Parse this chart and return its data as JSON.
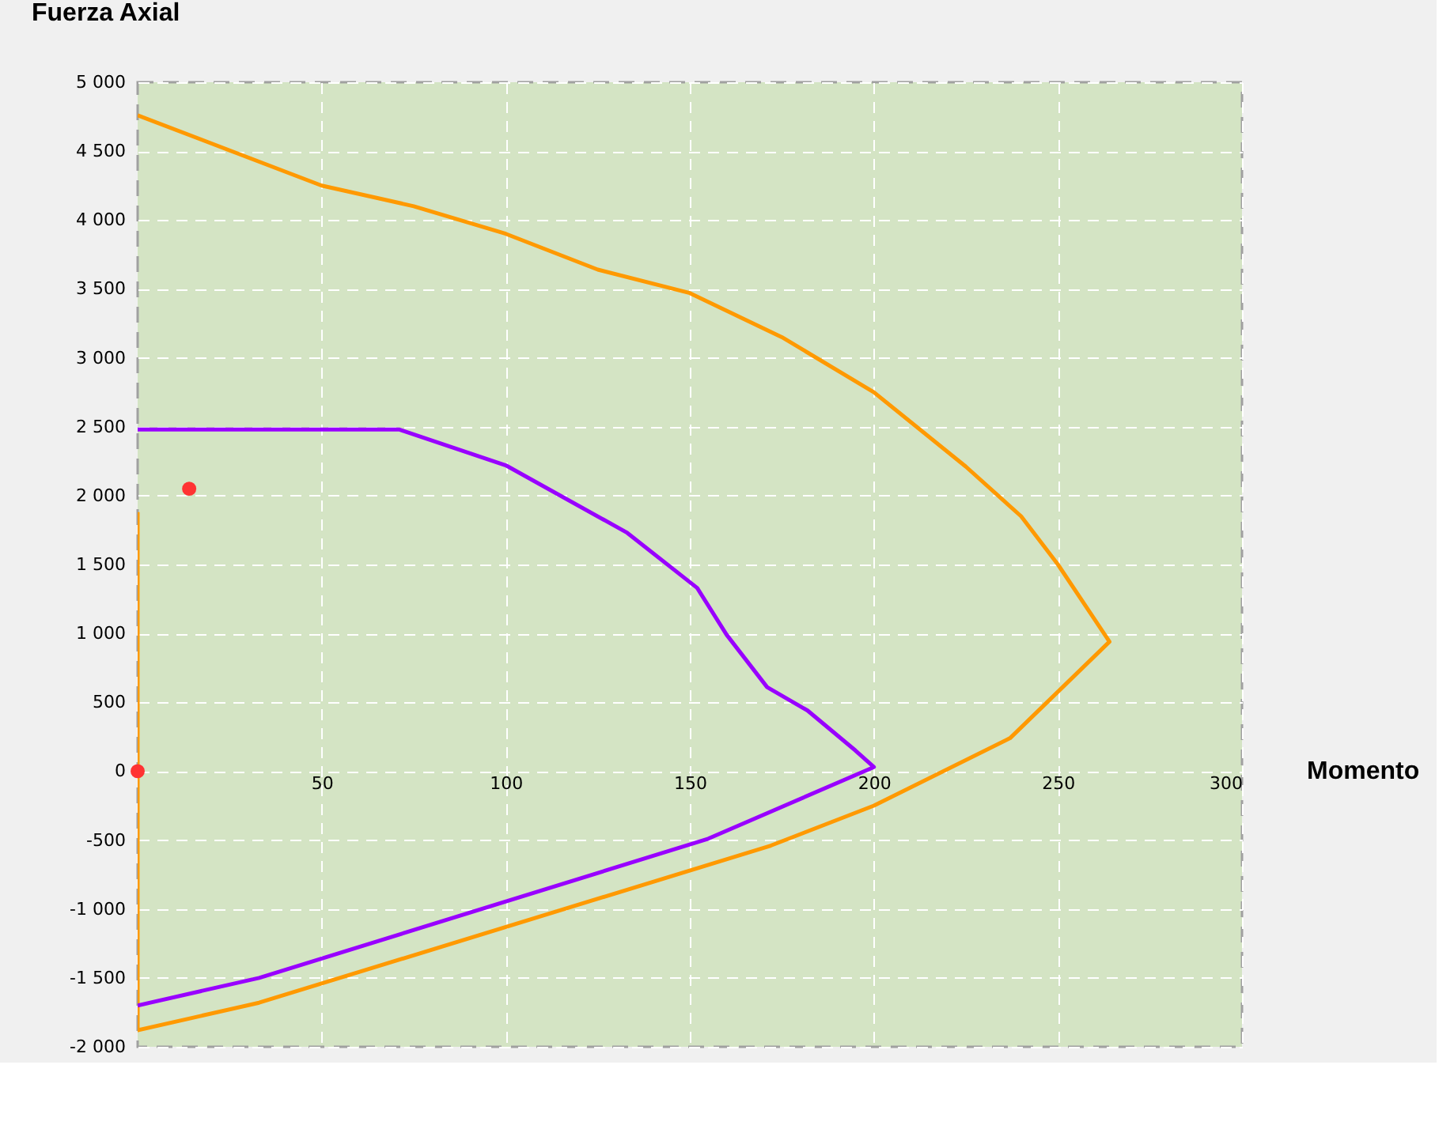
{
  "chart_data": {
    "type": "line",
    "xlabel": "Momento",
    "ylabel": "Fuerza Axial",
    "xlim": [
      0,
      300
    ],
    "ylim": [
      -2000,
      5000
    ],
    "xticks": [
      50,
      100,
      150,
      200,
      250,
      300
    ],
    "yticks": [
      {
        "value": -2000,
        "label": "-2 000"
      },
      {
        "value": -1500,
        "label": "-1 500"
      },
      {
        "value": -1000,
        "label": "-1 000"
      },
      -500,
      0,
      500,
      {
        "value": 1000,
        "label": "1 000"
      },
      {
        "value": 1500,
        "label": "1 500"
      },
      {
        "value": 2000,
        "label": "2 000"
      },
      {
        "value": 2500,
        "label": "2 500"
      },
      {
        "value": 3000,
        "label": "3 000"
      },
      {
        "value": 3500,
        "label": "3 500"
      },
      {
        "value": 4000,
        "label": "4 000"
      },
      {
        "value": 4500,
        "label": "4 500"
      },
      {
        "value": 5000,
        "label": "5 000"
      }
    ],
    "grid": true,
    "line_style": "solid",
    "series": [
      {
        "color": "#ff9900",
        "x": [
          0,
          50,
          75,
          100,
          125,
          150,
          175,
          200,
          225,
          240,
          250,
          264,
          237,
          200,
          172,
          33,
          0,
          0
        ],
        "values": [
          4760,
          4250,
          4100,
          3900,
          3640,
          3470,
          3150,
          2750,
          2210,
          1850,
          1500,
          940,
          240,
          -250,
          -540,
          -1680,
          -1880,
          1880
        ]
      },
      {
        "color": "#9900ff",
        "x": [
          0,
          71,
          100,
          133,
          152,
          160,
          171,
          182,
          195,
          200,
          155,
          33,
          0
        ],
        "values": [
          2480,
          2480,
          2220,
          1730,
          1330,
          990,
          610,
          440,
          150,
          30,
          -490,
          -1500,
          -1700
        ]
      },
      {
        "type": "scatter",
        "color": "#ff3333",
        "marker": "circle",
        "x": [
          14,
          0
        ],
        "values": [
          2050,
          0
        ]
      }
    ]
  }
}
